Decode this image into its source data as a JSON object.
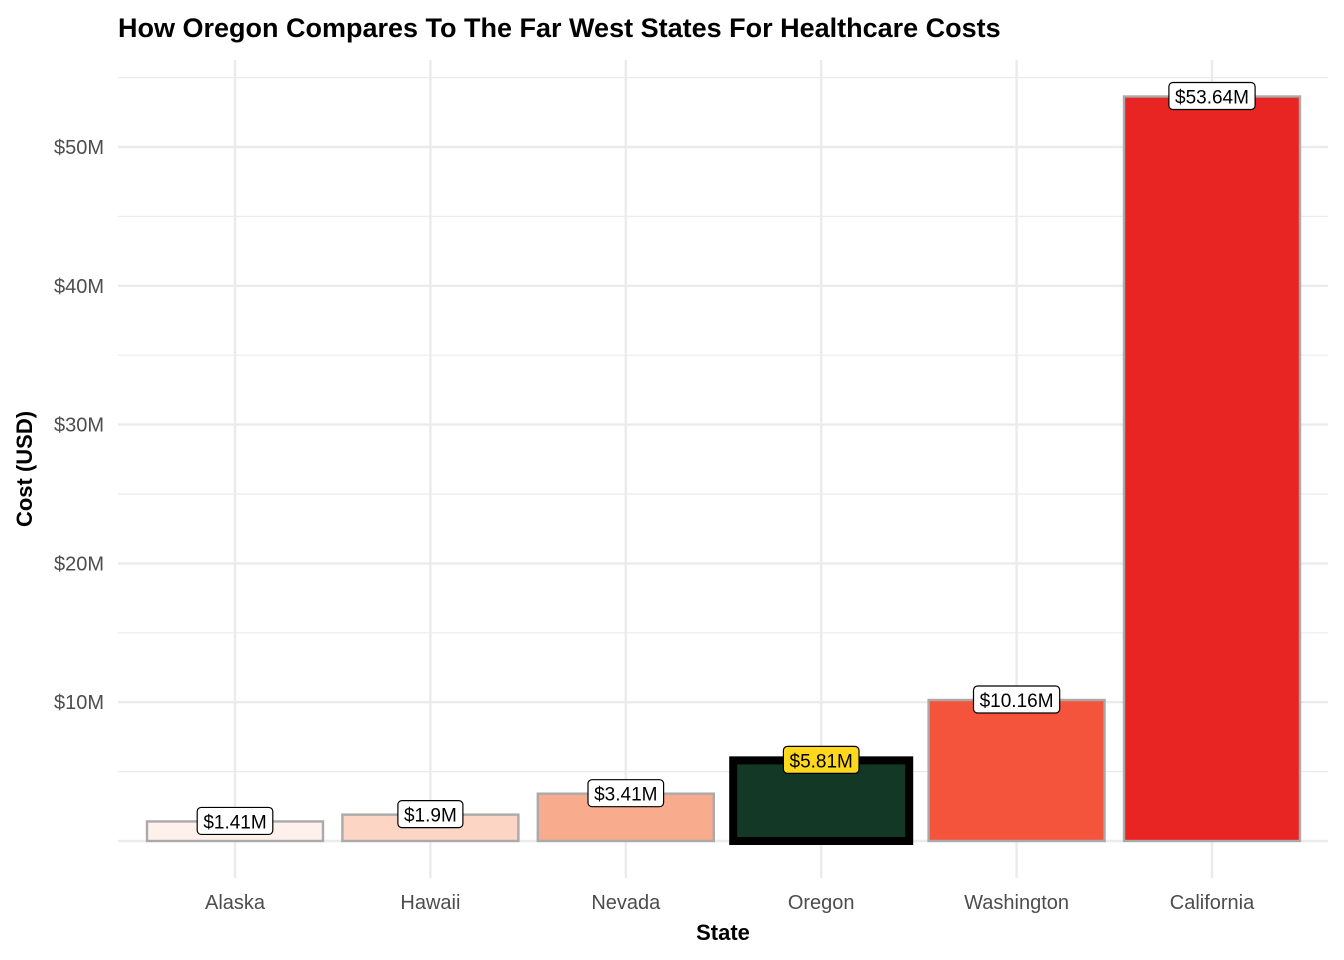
{
  "chart_data": {
    "type": "bar",
    "title": "How Oregon Compares To The Far West States For Healthcare Costs",
    "xlabel": "State",
    "ylabel": "Cost (USD)",
    "categories": [
      "Alaska",
      "Hawaii",
      "Nevada",
      "Oregon",
      "Washington",
      "California"
    ],
    "values": [
      1.41,
      1.9,
      3.41,
      5.81,
      10.16,
      53.64
    ],
    "value_unit": "million USD",
    "data_labels": [
      "$1.41M",
      "$1.9M",
      "$3.41M",
      "$5.81M",
      "$10.16M",
      "$53.64M"
    ],
    "ylim": [
      0,
      56
    ],
    "yticks": [
      10,
      20,
      30,
      40,
      50
    ],
    "ytick_labels": [
      "$10M",
      "$20M",
      "$30M",
      "$40M",
      "$50M"
    ],
    "grid": true,
    "highlight": "Oregon",
    "colors": {
      "fills": [
        "#FEF0EA",
        "#FDD5C5",
        "#F9AB8D",
        "#143826",
        "#F5543C",
        "#E82523"
      ],
      "border": "#AAAAAA",
      "highlight_border": "#000000",
      "highlight_label_bg": "#FFD81E",
      "label_bg": "#FFFFFF",
      "grid": "#EBEBEB"
    }
  }
}
